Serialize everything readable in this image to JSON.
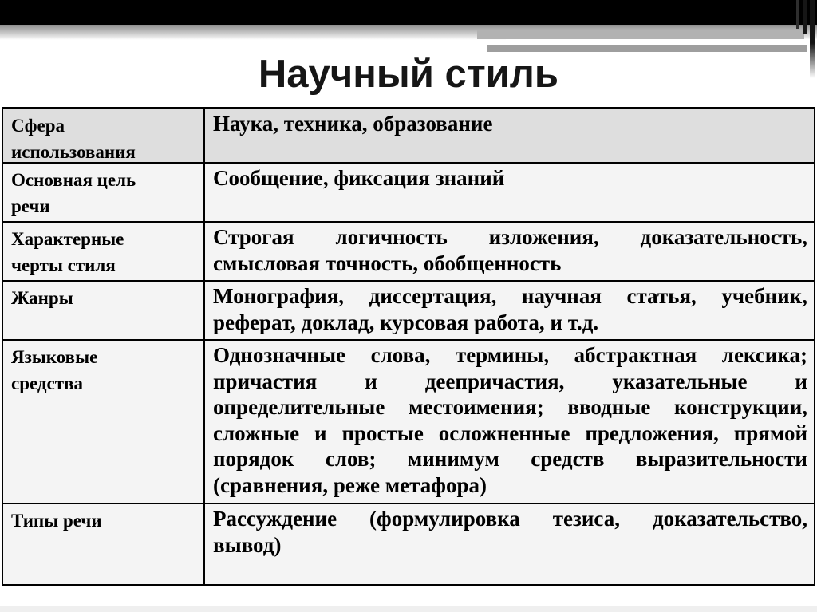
{
  "slide": {
    "title": "Научный стиль"
  },
  "table": {
    "rows": [
      {
        "label_lines": [
          "Сфера",
          "использования"
        ],
        "value_lines": [
          "Наука, техника, образование"
        ]
      },
      {
        "label_lines": [
          "Основная цель",
          "речи"
        ],
        "value_lines": [
          "Сообщение, фиксация знаний"
        ]
      },
      {
        "label_lines": [
          "Характерные",
          "черты стиля"
        ],
        "value_lines": [
          "Строгая логичность изложения, доказательность,",
          "смысловая точность, обобщенность"
        ]
      },
      {
        "label_lines": [
          "Жанры"
        ],
        "value_lines": [
          "Монография, диссертация, научная статья, учебник,",
          "реферат, доклад, курсовая работа, и т.д."
        ]
      },
      {
        "label_lines": [
          "Языковые",
          "средства"
        ],
        "value_lines": [
          "Однозначные слова, термины, абстрактная лексика;",
          "причастия и деепричастия, указательные и",
          "определительные местоимения; вводные конструкции,",
          "сложные и простые осложненные предложения, прямой",
          "порядок слов; минимум средств выразительности",
          "(сравнения, реже метафора)"
        ]
      },
      {
        "label_lines": [
          "Типы речи"
        ],
        "value_lines": [
          "Рассуждение (формулировка тезиса, доказательство,",
          "вывод)"
        ]
      }
    ]
  },
  "colors": {
    "top_bar": "#000000",
    "header_row_bg": "#dedede",
    "row_bg": "#f4f4f4",
    "table_border": "#000000",
    "title_text": "#161616",
    "body_text": "#000000"
  }
}
